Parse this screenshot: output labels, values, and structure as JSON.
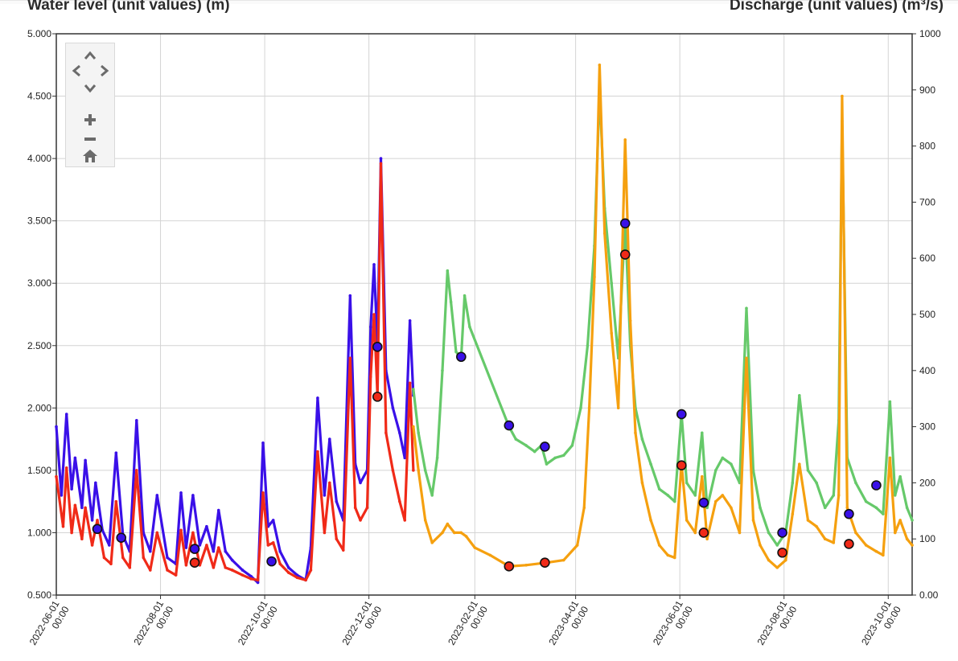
{
  "header": {
    "left_title": "Water level (unit values) (m)",
    "right_title": "Discharge (unit values) (m³/s)"
  },
  "nav": {
    "up": "˄",
    "down": "˅",
    "left": "‹",
    "right": "›",
    "zoom_in": "+",
    "zoom_out": "−",
    "home": "⌂"
  },
  "chart_data": {
    "type": "line",
    "y_left": {
      "label": "Water level (unit values) (m)",
      "ticks": [
        "5.000",
        "4.500",
        "4.000",
        "3.500",
        "3.000",
        "2.500",
        "2.000",
        "1.500",
        "1.000",
        "0.500"
      ],
      "lim": [
        0.5,
        5.0
      ]
    },
    "y_right": {
      "label": "Discharge (unit values) (m³/s)",
      "ticks": [
        "1000",
        "900",
        "800",
        "700",
        "600",
        "500",
        "400",
        "300",
        "200",
        "100",
        "0.00"
      ],
      "lim": [
        0,
        1000
      ]
    },
    "x_ticks": [
      "2022-06-01 00:00",
      "2022-08-01 00:00",
      "2022-10-01 00:00",
      "2022-12-01 00:00",
      "2023-02-01 00:00",
      "2023-04-01 00:00",
      "2023-06-01 00:00",
      "2023-08-01 00:00",
      "2023-10-01 00:00"
    ],
    "x_range": [
      "2022-06-01",
      "2023-10-15"
    ],
    "grid": true,
    "colors": {
      "blue": "#3a10e8",
      "red": "#f02a18",
      "green": "#66c96a",
      "orange": "#f5a00f"
    },
    "series": [
      {
        "axis": "left",
        "color": "#3a10e8",
        "points": [
          [
            "2022-06-01",
            1.85
          ],
          [
            "2022-06-04",
            1.3
          ],
          [
            "2022-06-07",
            1.95
          ],
          [
            "2022-06-10",
            1.35
          ],
          [
            "2022-06-12",
            1.6
          ],
          [
            "2022-06-16",
            1.2
          ],
          [
            "2022-06-18",
            1.58
          ],
          [
            "2022-06-22",
            1.1
          ],
          [
            "2022-06-24",
            1.4
          ],
          [
            "2022-06-28",
            1.02
          ],
          [
            "2022-07-02",
            0.9
          ],
          [
            "2022-07-06",
            1.64
          ],
          [
            "2022-07-10",
            0.98
          ],
          [
            "2022-07-14",
            0.85
          ],
          [
            "2022-07-18",
            1.9
          ],
          [
            "2022-07-22",
            1.0
          ],
          [
            "2022-07-26",
            0.85
          ],
          [
            "2022-07-30",
            1.3
          ],
          [
            "2022-08-05",
            0.8
          ],
          [
            "2022-08-10",
            0.75
          ],
          [
            "2022-08-13",
            1.32
          ],
          [
            "2022-08-16",
            0.88
          ],
          [
            "2022-08-20",
            1.3
          ],
          [
            "2022-08-24",
            0.9
          ],
          [
            "2022-08-28",
            1.05
          ],
          [
            "2022-09-01",
            0.85
          ],
          [
            "2022-09-04",
            1.18
          ],
          [
            "2022-09-08",
            0.85
          ],
          [
            "2022-09-12",
            0.78
          ],
          [
            "2022-09-18",
            0.7
          ],
          [
            "2022-09-23",
            0.65
          ],
          [
            "2022-09-27",
            0.6
          ],
          [
            "2022-09-30",
            1.72
          ],
          [
            "2022-10-03",
            1.05
          ],
          [
            "2022-10-06",
            1.1
          ],
          [
            "2022-10-10",
            0.85
          ],
          [
            "2022-10-15",
            0.72
          ],
          [
            "2022-10-20",
            0.66
          ],
          [
            "2022-10-25",
            0.62
          ],
          [
            "2022-10-28",
            0.88
          ],
          [
            "2022-11-01",
            2.08
          ],
          [
            "2022-11-05",
            1.3
          ],
          [
            "2022-11-08",
            1.75
          ],
          [
            "2022-11-12",
            1.25
          ],
          [
            "2022-11-16",
            1.1
          ],
          [
            "2022-11-20",
            2.9
          ],
          [
            "2022-11-23",
            1.55
          ],
          [
            "2022-11-26",
            1.4
          ],
          [
            "2022-11-30",
            1.5
          ],
          [
            "2022-12-02",
            2.65
          ],
          [
            "2022-12-04",
            3.15
          ],
          [
            "2022-12-06",
            2.5
          ],
          [
            "2022-12-08",
            4.0
          ],
          [
            "2022-12-11",
            2.3
          ],
          [
            "2022-12-15",
            2.0
          ],
          [
            "2022-12-19",
            1.8
          ],
          [
            "2022-12-22",
            1.6
          ],
          [
            "2022-12-25",
            2.7
          ],
          [
            "2022-12-27",
            2.1
          ]
        ]
      },
      {
        "axis": "left",
        "color": "#f02a18",
        "points": [
          [
            "2022-06-01",
            1.45
          ],
          [
            "2022-06-05",
            1.05
          ],
          [
            "2022-06-07",
            1.52
          ],
          [
            "2022-06-10",
            1.0
          ],
          [
            "2022-06-12",
            1.22
          ],
          [
            "2022-06-16",
            0.95
          ],
          [
            "2022-06-18",
            1.2
          ],
          [
            "2022-06-22",
            0.9
          ],
          [
            "2022-06-25",
            1.1
          ],
          [
            "2022-06-29",
            0.8
          ],
          [
            "2022-07-03",
            0.75
          ],
          [
            "2022-07-06",
            1.25
          ],
          [
            "2022-07-10",
            0.8
          ],
          [
            "2022-07-14",
            0.72
          ],
          [
            "2022-07-18",
            1.5
          ],
          [
            "2022-07-22",
            0.8
          ],
          [
            "2022-07-26",
            0.7
          ],
          [
            "2022-07-30",
            1.0
          ],
          [
            "2022-08-05",
            0.7
          ],
          [
            "2022-08-10",
            0.66
          ],
          [
            "2022-08-13",
            1.02
          ],
          [
            "2022-08-16",
            0.74
          ],
          [
            "2022-08-20",
            1.0
          ],
          [
            "2022-08-24",
            0.74
          ],
          [
            "2022-08-28",
            0.9
          ],
          [
            "2022-09-01",
            0.72
          ],
          [
            "2022-09-04",
            0.88
          ],
          [
            "2022-09-08",
            0.72
          ],
          [
            "2022-09-12",
            0.7
          ],
          [
            "2022-09-18",
            0.66
          ],
          [
            "2022-09-23",
            0.63
          ],
          [
            "2022-09-27",
            0.62
          ],
          [
            "2022-09-30",
            1.32
          ],
          [
            "2022-10-03",
            0.9
          ],
          [
            "2022-10-06",
            0.92
          ],
          [
            "2022-10-10",
            0.75
          ],
          [
            "2022-10-15",
            0.68
          ],
          [
            "2022-10-20",
            0.64
          ],
          [
            "2022-10-25",
            0.62
          ],
          [
            "2022-10-28",
            0.7
          ],
          [
            "2022-11-01",
            1.65
          ],
          [
            "2022-11-05",
            1.0
          ],
          [
            "2022-11-08",
            1.4
          ],
          [
            "2022-11-12",
            0.95
          ],
          [
            "2022-11-16",
            0.86
          ],
          [
            "2022-11-20",
            2.4
          ],
          [
            "2022-11-23",
            1.2
          ],
          [
            "2022-11-26",
            1.1
          ],
          [
            "2022-11-30",
            1.2
          ],
          [
            "2022-12-02",
            2.25
          ],
          [
            "2022-12-04",
            2.75
          ],
          [
            "2022-12-06",
            2.1
          ],
          [
            "2022-12-08",
            3.96
          ],
          [
            "2022-12-11",
            1.8
          ],
          [
            "2022-12-15",
            1.5
          ],
          [
            "2022-12-19",
            1.25
          ],
          [
            "2022-12-22",
            1.1
          ],
          [
            "2022-12-25",
            2.2
          ],
          [
            "2022-12-27",
            1.5
          ]
        ]
      },
      {
        "axis": "left",
        "color": "#66c96a",
        "points": [
          [
            "2022-12-27",
            2.15
          ],
          [
            "2022-12-30",
            1.8
          ],
          [
            "2023-01-03",
            1.5
          ],
          [
            "2023-01-07",
            1.3
          ],
          [
            "2023-01-10",
            1.6
          ],
          [
            "2023-01-13",
            2.3
          ],
          [
            "2023-01-16",
            3.1
          ],
          [
            "2023-01-18",
            2.85
          ],
          [
            "2023-01-21",
            2.45
          ],
          [
            "2023-01-24",
            2.4
          ],
          [
            "2023-01-26",
            2.9
          ],
          [
            "2023-01-29",
            2.65
          ],
          [
            "2023-02-21",
            1.85
          ],
          [
            "2023-02-25",
            1.75
          ],
          [
            "2023-03-03",
            1.7
          ],
          [
            "2023-03-08",
            1.65
          ],
          [
            "2023-03-12",
            1.7
          ],
          [
            "2023-03-15",
            1.55
          ],
          [
            "2023-03-20",
            1.6
          ],
          [
            "2023-03-25",
            1.62
          ],
          [
            "2023-03-30",
            1.7
          ],
          [
            "2023-04-04",
            2.0
          ],
          [
            "2023-04-08",
            2.5
          ],
          [
            "2023-04-12",
            3.3
          ],
          [
            "2023-04-15",
            4.55
          ],
          [
            "2023-04-18",
            3.6
          ],
          [
            "2023-04-22",
            3.0
          ],
          [
            "2023-04-26",
            2.4
          ],
          [
            "2023-04-30",
            3.5
          ],
          [
            "2023-05-03",
            2.5
          ],
          [
            "2023-05-06",
            2.0
          ],
          [
            "2023-05-10",
            1.75
          ],
          [
            "2023-05-15",
            1.55
          ],
          [
            "2023-05-20",
            1.35
          ],
          [
            "2023-05-25",
            1.3
          ],
          [
            "2023-05-29",
            1.25
          ],
          [
            "2023-06-02",
            1.95
          ],
          [
            "2023-06-05",
            1.4
          ],
          [
            "2023-06-10",
            1.3
          ],
          [
            "2023-06-14",
            1.8
          ],
          [
            "2023-06-17",
            1.2
          ],
          [
            "2023-06-22",
            1.5
          ],
          [
            "2023-06-26",
            1.6
          ],
          [
            "2023-07-01",
            1.55
          ],
          [
            "2023-07-06",
            1.4
          ],
          [
            "2023-07-10",
            2.8
          ],
          [
            "2023-07-14",
            1.5
          ],
          [
            "2023-07-18",
            1.2
          ],
          [
            "2023-07-23",
            1.0
          ],
          [
            "2023-07-28",
            0.9
          ],
          [
            "2023-08-02",
            1.0
          ],
          [
            "2023-08-06",
            1.4
          ],
          [
            "2023-08-10",
            2.1
          ],
          [
            "2023-08-15",
            1.5
          ],
          [
            "2023-08-20",
            1.4
          ],
          [
            "2023-08-25",
            1.2
          ],
          [
            "2023-08-30",
            1.3
          ],
          [
            "2023-09-02",
            1.9
          ],
          [
            "2023-09-04",
            4.3
          ],
          [
            "2023-09-07",
            1.6
          ],
          [
            "2023-09-12",
            1.4
          ],
          [
            "2023-09-18",
            1.25
          ],
          [
            "2023-09-24",
            1.2
          ],
          [
            "2023-09-28",
            1.15
          ],
          [
            "2023-10-02",
            2.05
          ],
          [
            "2023-10-05",
            1.3
          ],
          [
            "2023-10-08",
            1.45
          ],
          [
            "2023-10-12",
            1.2
          ],
          [
            "2023-10-15",
            1.1
          ]
        ]
      },
      {
        "axis": "left",
        "color": "#f5a00f",
        "points": [
          [
            "2022-12-27",
            1.85
          ],
          [
            "2022-12-30",
            1.5
          ],
          [
            "2023-01-03",
            1.1
          ],
          [
            "2023-01-07",
            0.92
          ],
          [
            "2023-01-13",
            1.0
          ],
          [
            "2023-01-16",
            1.07
          ],
          [
            "2023-01-20",
            1.0
          ],
          [
            "2023-01-24",
            1.0
          ],
          [
            "2023-01-27",
            0.97
          ],
          [
            "2023-02-01",
            0.88
          ],
          [
            "2023-02-10",
            0.82
          ],
          [
            "2023-02-21",
            0.73
          ],
          [
            "2023-03-03",
            0.74
          ],
          [
            "2023-03-15",
            0.76
          ],
          [
            "2023-03-25",
            0.78
          ],
          [
            "2023-04-02",
            0.9
          ],
          [
            "2023-04-06",
            1.2
          ],
          [
            "2023-04-09",
            2.0
          ],
          [
            "2023-04-12",
            3.05
          ],
          [
            "2023-04-15",
            4.75
          ],
          [
            "2023-04-18",
            3.4
          ],
          [
            "2023-04-22",
            2.6
          ],
          [
            "2023-04-26",
            2.0
          ],
          [
            "2023-04-30",
            4.15
          ],
          [
            "2023-05-03",
            2.7
          ],
          [
            "2023-05-06",
            1.8
          ],
          [
            "2023-05-10",
            1.4
          ],
          [
            "2023-05-15",
            1.1
          ],
          [
            "2023-05-20",
            0.9
          ],
          [
            "2023-05-25",
            0.82
          ],
          [
            "2023-05-29",
            0.8
          ],
          [
            "2023-06-02",
            1.55
          ],
          [
            "2023-06-05",
            1.1
          ],
          [
            "2023-06-10",
            1.0
          ],
          [
            "2023-06-14",
            1.45
          ],
          [
            "2023-06-17",
            0.95
          ],
          [
            "2023-06-22",
            1.25
          ],
          [
            "2023-06-26",
            1.3
          ],
          [
            "2023-07-01",
            1.2
          ],
          [
            "2023-07-06",
            1.0
          ],
          [
            "2023-07-10",
            2.4
          ],
          [
            "2023-07-14",
            1.1
          ],
          [
            "2023-07-18",
            0.9
          ],
          [
            "2023-07-23",
            0.78
          ],
          [
            "2023-07-28",
            0.72
          ],
          [
            "2023-08-02",
            0.78
          ],
          [
            "2023-08-06",
            1.15
          ],
          [
            "2023-08-10",
            1.55
          ],
          [
            "2023-08-15",
            1.1
          ],
          [
            "2023-08-20",
            1.05
          ],
          [
            "2023-08-25",
            0.95
          ],
          [
            "2023-08-30",
            0.92
          ],
          [
            "2023-09-02",
            1.3
          ],
          [
            "2023-09-04",
            4.5
          ],
          [
            "2023-09-07",
            1.2
          ],
          [
            "2023-09-12",
            1.0
          ],
          [
            "2023-09-18",
            0.9
          ],
          [
            "2023-09-24",
            0.85
          ],
          [
            "2023-09-28",
            0.82
          ],
          [
            "2023-10-02",
            1.6
          ],
          [
            "2023-10-05",
            1.0
          ],
          [
            "2023-10-08",
            1.1
          ],
          [
            "2023-10-12",
            0.95
          ],
          [
            "2023-10-15",
            0.9
          ]
        ]
      }
    ],
    "markers_blue": [
      [
        "2022-06-25",
        1.03
      ],
      [
        "2022-07-09",
        0.96
      ],
      [
        "2022-08-21",
        0.87
      ],
      [
        "2022-10-05",
        0.77
      ],
      [
        "2022-12-06",
        2.49
      ],
      [
        "2023-01-24",
        2.41
      ],
      [
        "2023-02-21",
        1.86
      ],
      [
        "2023-03-14",
        1.69
      ],
      [
        "2023-04-30",
        3.48
      ],
      [
        "2023-06-02",
        1.95
      ],
      [
        "2023-06-15",
        1.24
      ],
      [
        "2023-07-31",
        1.0
      ],
      [
        "2023-09-08",
        1.15
      ],
      [
        "2023-09-24",
        1.38
      ]
    ],
    "markers_red": [
      [
        "2022-08-21",
        0.76
      ],
      [
        "2022-12-06",
        2.09
      ],
      [
        "2023-02-21",
        0.73
      ],
      [
        "2023-03-14",
        0.76
      ],
      [
        "2023-04-30",
        3.23
      ],
      [
        "2023-06-02",
        1.54
      ],
      [
        "2023-06-15",
        1.0
      ],
      [
        "2023-07-31",
        0.84
      ],
      [
        "2023-09-08",
        0.91
      ]
    ]
  }
}
